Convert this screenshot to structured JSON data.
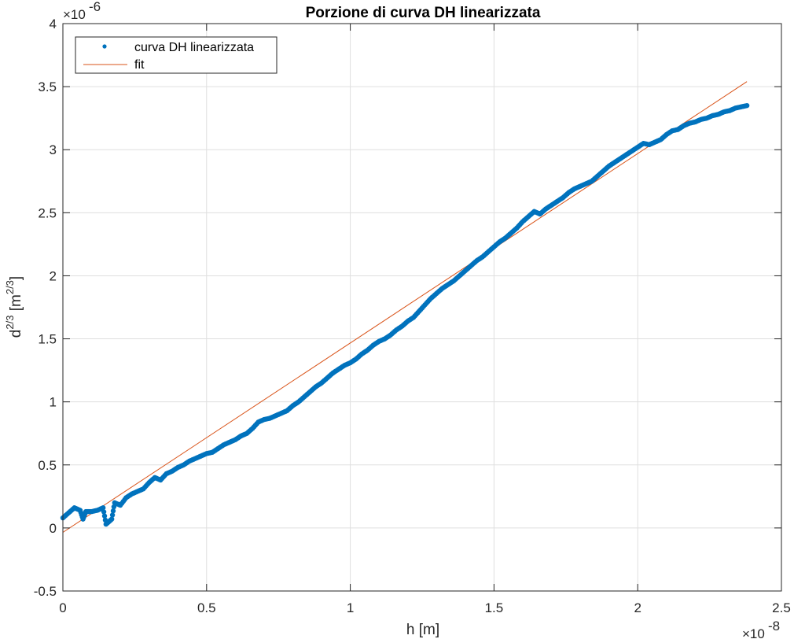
{
  "chart_data": {
    "type": "scatter",
    "title": "Porzione di curva DH linearizzata",
    "xlabel": "h [m]",
    "ylabel": "d^{2/3} [m^{2/3}]",
    "x_exponent": "-8",
    "y_exponent": "-6",
    "xlim": [
      0,
      2.5
    ],
    "ylim": [
      -0.5,
      4
    ],
    "xticks": [
      "0",
      "0.5",
      "1",
      "1.5",
      "2",
      "2.5"
    ],
    "yticks": [
      "-0.5",
      "0",
      "0.5",
      "1",
      "1.5",
      "2",
      "2.5",
      "3",
      "3.5",
      "4"
    ],
    "grid": true,
    "legend_position": "top-left",
    "series": [
      {
        "name": "curva DH linearizzata",
        "style": "markers",
        "color": "#0072BD",
        "x": [
          0.0,
          0.02,
          0.04,
          0.06,
          0.07,
          0.08,
          0.1,
          0.12,
          0.14,
          0.15,
          0.16,
          0.17,
          0.18,
          0.2,
          0.22,
          0.24,
          0.26,
          0.28,
          0.3,
          0.32,
          0.34,
          0.36,
          0.38,
          0.4,
          0.42,
          0.44,
          0.46,
          0.48,
          0.5,
          0.52,
          0.54,
          0.56,
          0.58,
          0.6,
          0.62,
          0.64,
          0.66,
          0.68,
          0.7,
          0.72,
          0.74,
          0.76,
          0.78,
          0.8,
          0.82,
          0.84,
          0.86,
          0.88,
          0.9,
          0.92,
          0.94,
          0.96,
          0.98,
          1.0,
          1.02,
          1.04,
          1.06,
          1.08,
          1.1,
          1.12,
          1.14,
          1.16,
          1.18,
          1.2,
          1.22,
          1.24,
          1.26,
          1.28,
          1.3,
          1.32,
          1.34,
          1.36,
          1.38,
          1.4,
          1.42,
          1.44,
          1.46,
          1.48,
          1.5,
          1.52,
          1.54,
          1.56,
          1.58,
          1.6,
          1.62,
          1.64,
          1.66,
          1.68,
          1.7,
          1.72,
          1.74,
          1.76,
          1.78,
          1.8,
          1.82,
          1.84,
          1.86,
          1.88,
          1.9,
          1.92,
          1.94,
          1.96,
          1.98,
          2.0,
          2.02,
          2.04,
          2.06,
          2.08,
          2.1,
          2.12,
          2.14,
          2.16,
          2.18,
          2.2,
          2.22,
          2.24,
          2.26,
          2.28,
          2.3,
          2.32,
          2.34,
          2.36,
          2.38
        ],
        "y": [
          0.08,
          0.12,
          0.16,
          0.14,
          0.07,
          0.13,
          0.13,
          0.14,
          0.16,
          0.03,
          0.05,
          0.07,
          0.2,
          0.18,
          0.24,
          0.27,
          0.29,
          0.31,
          0.36,
          0.4,
          0.38,
          0.43,
          0.45,
          0.48,
          0.5,
          0.53,
          0.55,
          0.57,
          0.59,
          0.6,
          0.63,
          0.66,
          0.68,
          0.7,
          0.73,
          0.75,
          0.79,
          0.84,
          0.86,
          0.87,
          0.89,
          0.91,
          0.93,
          0.97,
          1.0,
          1.04,
          1.08,
          1.12,
          1.15,
          1.19,
          1.23,
          1.26,
          1.29,
          1.31,
          1.34,
          1.38,
          1.41,
          1.45,
          1.48,
          1.5,
          1.53,
          1.57,
          1.6,
          1.64,
          1.67,
          1.72,
          1.77,
          1.82,
          1.86,
          1.9,
          1.93,
          1.96,
          2.0,
          2.04,
          2.08,
          2.12,
          2.15,
          2.19,
          2.23,
          2.27,
          2.3,
          2.34,
          2.38,
          2.43,
          2.47,
          2.51,
          2.49,
          2.53,
          2.56,
          2.59,
          2.62,
          2.66,
          2.69,
          2.71,
          2.73,
          2.75,
          2.79,
          2.83,
          2.87,
          2.9,
          2.93,
          2.96,
          2.99,
          3.02,
          3.05,
          3.04,
          3.06,
          3.08,
          3.12,
          3.15,
          3.16,
          3.19,
          3.21,
          3.22,
          3.24,
          3.25,
          3.27,
          3.28,
          3.3,
          3.31,
          3.33,
          3.34,
          3.35
        ]
      },
      {
        "name": "fit",
        "style": "line",
        "color": "#D95319",
        "x": [
          0,
          2.38
        ],
        "y": [
          -0.035,
          3.54
        ]
      }
    ]
  }
}
